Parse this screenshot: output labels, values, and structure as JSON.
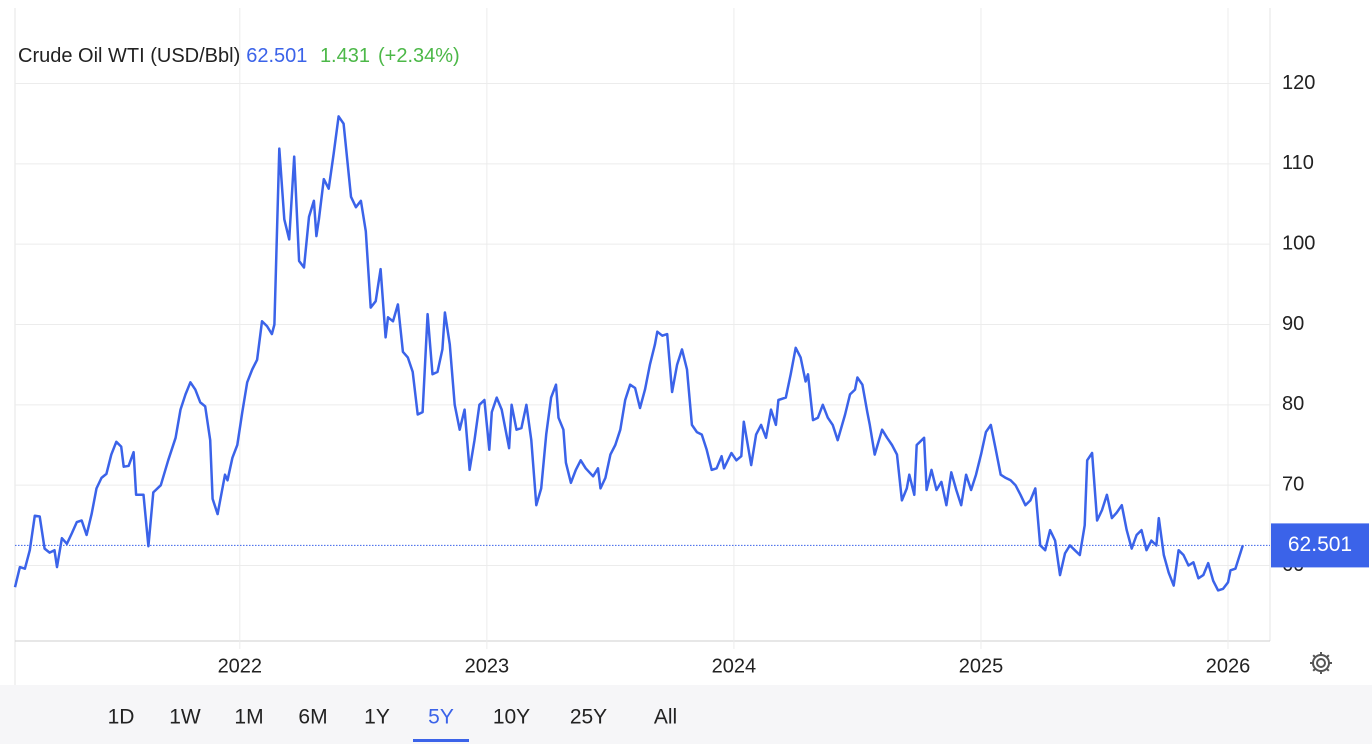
{
  "chart_data": {
    "type": "line",
    "title": "Crude Oil WTI (USD/Bbl)",
    "price": 62.501,
    "change": 1.431,
    "change_label": "(+2.34%)",
    "color": "#3b63e9",
    "xlim": [
      2021.09,
      2026.17
    ],
    "ylim": [
      50.6,
      129.4
    ],
    "xticks": [
      2022,
      2023,
      2024,
      2025,
      2026
    ],
    "yticks": [
      60,
      70,
      80,
      90,
      100,
      110,
      120
    ],
    "grid": true,
    "ranges": [
      "1D",
      "1W",
      "1M",
      "6M",
      "1Y",
      "5Y",
      "10Y",
      "25Y",
      "All"
    ],
    "active_range": "5Y",
    "series": [
      {
        "name": "Crude Oil WTI",
        "x": [
          2021.09,
          2021.11,
          2021.13,
          2021.15,
          2021.17,
          2021.19,
          2021.21,
          2021.23,
          2021.25,
          2021.26,
          2021.28,
          2021.3,
          2021.32,
          2021.34,
          2021.36,
          2021.38,
          2021.4,
          2021.42,
          2021.44,
          2021.46,
          2021.48,
          2021.5,
          2021.52,
          2021.53,
          2021.55,
          2021.57,
          2021.58,
          2021.61,
          2021.63,
          2021.65,
          2021.68,
          2021.71,
          2021.74,
          2021.76,
          2021.78,
          2021.8,
          2021.82,
          2021.84,
          2021.86,
          2021.88,
          2021.89,
          2021.91,
          2021.94,
          2021.95,
          2021.97,
          2021.99,
          2022.01,
          2022.03,
          2022.05,
          2022.07,
          2022.09,
          2022.11,
          2022.13,
          2022.14,
          2022.16,
          2022.18,
          2022.2,
          2022.22,
          2022.24,
          2022.26,
          2022.28,
          2022.3,
          2022.31,
          2022.32,
          2022.34,
          2022.36,
          2022.38,
          2022.4,
          2022.42,
          2022.45,
          2022.47,
          2022.49,
          2022.51,
          2022.53,
          2022.55,
          2022.57,
          2022.59,
          2022.6,
          2022.62,
          2022.64,
          2022.66,
          2022.68,
          2022.7,
          2022.72,
          2022.74,
          2022.76,
          2022.78,
          2022.8,
          2022.82,
          2022.83,
          2022.85,
          2022.87,
          2022.89,
          2022.91,
          2022.93,
          2022.95,
          2022.97,
          2022.99,
          2023.01,
          2023.02,
          2023.04,
          2023.06,
          2023.09,
          2023.1,
          2023.12,
          2023.14,
          2023.16,
          2023.18,
          2023.2,
          2023.22,
          2023.24,
          2023.26,
          2023.28,
          2023.29,
          2023.31,
          2023.32,
          2023.34,
          2023.36,
          2023.38,
          2023.4,
          2023.43,
          2023.45,
          2023.46,
          2023.48,
          2023.5,
          2023.52,
          2023.54,
          2023.56,
          2023.58,
          2023.6,
          2023.62,
          2023.64,
          2023.66,
          2023.68,
          2023.69,
          2023.71,
          2023.73,
          2023.75,
          2023.77,
          2023.79,
          2023.81,
          2023.83,
          2023.85,
          2023.87,
          2023.89,
          2023.91,
          2023.93,
          2023.95,
          2023.96,
          2023.99,
          2024.01,
          2024.03,
          2024.04,
          2024.07,
          2024.09,
          2024.11,
          2024.13,
          2024.15,
          2024.17,
          2024.18,
          2024.21,
          2024.23,
          2024.25,
          2024.27,
          2024.29,
          2024.3,
          2024.32,
          2024.34,
          2024.36,
          2024.38,
          2024.4,
          2024.42,
          2024.45,
          2024.47,
          2024.49,
          2024.5,
          2024.52,
          2024.54,
          2024.55,
          2024.57,
          2024.6,
          2024.62,
          2024.64,
          2024.66,
          2024.68,
          2024.7,
          2024.71,
          2024.73,
          2024.74,
          2024.77,
          2024.78,
          2024.8,
          2024.82,
          2024.84,
          2024.86,
          2024.88,
          2024.9,
          2024.92,
          2024.94,
          2024.96,
          2024.98,
          2025.0,
          2025.02,
          2025.04,
          2025.06,
          2025.08,
          2025.1,
          2025.12,
          2025.14,
          2025.16,
          2025.18,
          2025.2,
          2025.22,
          2025.24,
          2025.26,
          2025.28,
          2025.3,
          2025.32,
          2025.34,
          2025.36,
          2025.38,
          2025.4,
          2025.42,
          2025.43,
          2025.45,
          2025.47,
          2025.49,
          2025.51,
          2025.53,
          2025.55,
          2025.57,
          2025.59,
          2025.61,
          2025.63,
          2025.65,
          2025.67,
          2025.69,
          2025.71,
          2025.72,
          2025.74,
          2025.76,
          2025.78,
          2025.8,
          2025.82,
          2025.84,
          2025.86,
          2025.88,
          2025.9,
          2025.92,
          2025.94,
          2025.96,
          2025.98,
          2026.0,
          2026.01,
          2026.03,
          2026.06
        ],
        "values": [
          57.3,
          59.8,
          59.6,
          61.9,
          66.2,
          66.1,
          62.1,
          61.6,
          61.9,
          59.8,
          63.4,
          62.7,
          64.0,
          65.4,
          65.6,
          63.8,
          66.4,
          69.6,
          70.9,
          71.4,
          73.8,
          75.4,
          74.8,
          72.3,
          72.4,
          74.1,
          68.8,
          68.8,
          62.4,
          69.1,
          70.0,
          73.1,
          75.9,
          79.4,
          81.3,
          82.8,
          81.9,
          80.3,
          79.8,
          75.6,
          68.3,
          66.4,
          71.3,
          70.6,
          73.4,
          75.0,
          79.1,
          82.8,
          84.4,
          85.6,
          90.4,
          89.8,
          88.8,
          90.0,
          111.9,
          103.1,
          100.6,
          110.9,
          97.9,
          97.1,
          103.4,
          105.4,
          101.0,
          103.1,
          108.1,
          106.9,
          111.3,
          115.9,
          115.0,
          105.9,
          104.6,
          105.4,
          101.6,
          92.1,
          92.9,
          96.9,
          88.4,
          90.9,
          90.4,
          92.5,
          86.6,
          85.9,
          84.1,
          78.8,
          79.1,
          91.3,
          83.8,
          84.1,
          86.9,
          91.5,
          87.5,
          80.0,
          76.9,
          79.4,
          71.9,
          75.6,
          80.0,
          80.6,
          74.4,
          79.1,
          80.9,
          79.4,
          74.6,
          80.0,
          76.9,
          77.1,
          80.0,
          75.6,
          67.5,
          69.6,
          76.3,
          80.9,
          82.5,
          78.4,
          76.9,
          72.8,
          70.3,
          71.9,
          73.1,
          72.1,
          71.1,
          72.1,
          69.6,
          70.9,
          73.8,
          75.0,
          76.9,
          80.6,
          82.5,
          82.1,
          79.6,
          81.9,
          85.0,
          87.5,
          89.1,
          88.6,
          88.8,
          81.6,
          85.0,
          86.9,
          84.4,
          77.5,
          76.6,
          76.3,
          74.4,
          71.9,
          72.1,
          73.6,
          72.1,
          74.0,
          73.1,
          73.6,
          77.9,
          72.5,
          76.3,
          77.5,
          75.9,
          79.4,
          77.5,
          80.6,
          80.9,
          83.8,
          87.1,
          85.9,
          82.9,
          83.8,
          78.1,
          78.4,
          80.0,
          78.4,
          77.5,
          75.6,
          78.8,
          81.3,
          81.9,
          83.4,
          82.5,
          79.1,
          77.5,
          73.8,
          76.9,
          75.9,
          75.0,
          73.8,
          68.1,
          69.6,
          71.3,
          68.8,
          75.0,
          75.9,
          69.4,
          71.9,
          69.4,
          70.4,
          67.5,
          71.6,
          69.4,
          67.5,
          71.3,
          69.4,
          71.3,
          73.8,
          76.6,
          77.5,
          74.4,
          71.3,
          70.9,
          70.6,
          70.0,
          68.8,
          67.5,
          68.1,
          69.6,
          62.5,
          61.9,
          64.4,
          63.1,
          58.8,
          61.5,
          62.5,
          61.9,
          61.3,
          65.0,
          73.1,
          74.0,
          65.6,
          66.9,
          68.8,
          65.9,
          66.6,
          67.5,
          64.4,
          62.1,
          63.8,
          64.4,
          61.9,
          63.1,
          62.5,
          65.9,
          61.3,
          59.1,
          57.5,
          61.9,
          61.3,
          60.0,
          60.4,
          58.4,
          58.8,
          60.3,
          58.1,
          56.9,
          57.1,
          57.9,
          59.4,
          59.6,
          62.5
        ]
      }
    ]
  }
}
